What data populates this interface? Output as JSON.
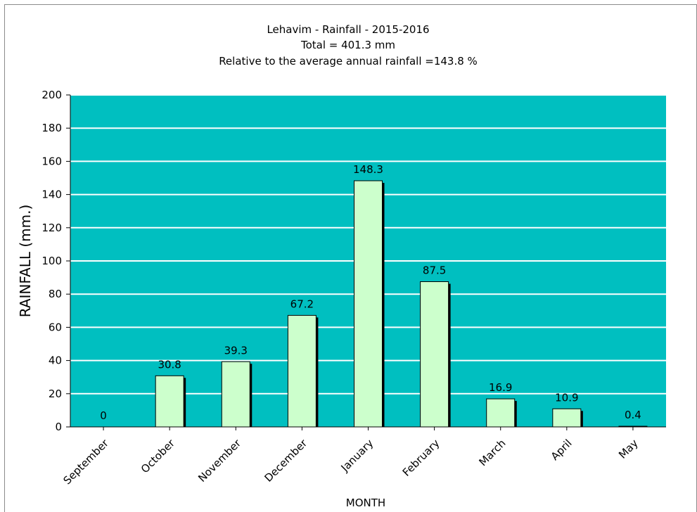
{
  "chart_data": {
    "type": "bar",
    "title": "Lehavim - Rainfall - 2015-2016",
    "subtitle_lines": [
      "Total = 401.3 mm",
      "Relative to the average annual rainfall =143.8 %"
    ],
    "xlabel": "MONTH",
    "ylabel": "RAINFALL (mm.)",
    "categories": [
      "September",
      "October",
      "November",
      "December",
      "January",
      "February",
      "March",
      "April",
      "May"
    ],
    "values": [
      0,
      30.8,
      39.3,
      67.2,
      148.3,
      87.5,
      16.9,
      10.9,
      0.4
    ],
    "data_labels": [
      "0",
      "30.8",
      "39.3",
      "67.2",
      "148.3",
      "87.5",
      "16.9",
      "10.9",
      "0.4"
    ],
    "ylim": [
      0,
      200
    ],
    "yticks": [
      0,
      20,
      40,
      60,
      80,
      100,
      120,
      140,
      160,
      180,
      200
    ],
    "grid": true,
    "colors": {
      "plot_background": "#00BFC0",
      "bar_fill": "#CCFFCC",
      "bar_shadow": "#000000",
      "gridline": "#FFFFFF"
    }
  }
}
